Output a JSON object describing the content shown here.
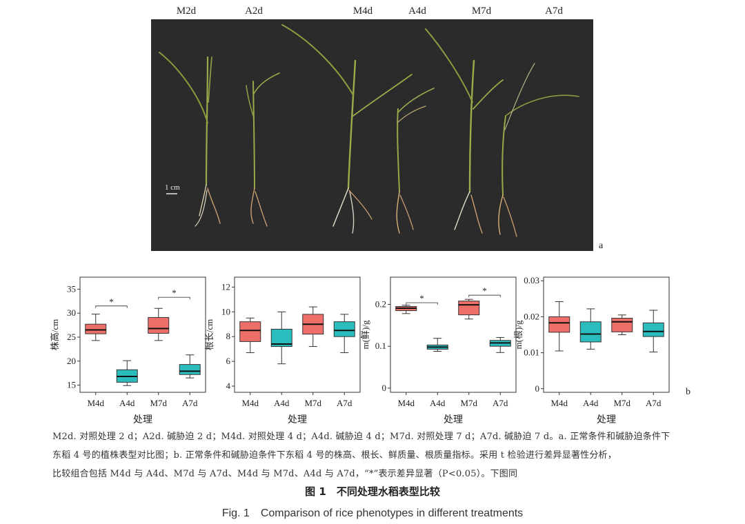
{
  "photo": {
    "labels": [
      "M2d",
      "A2d",
      "M4d",
      "A4d",
      "M7d",
      "A7d"
    ],
    "scale_bar": "1 cm",
    "panel_letter": "a"
  },
  "panel_b_letter": "b",
  "colors": {
    "control": "#ee6f6a",
    "alkali": "#2bbcbe",
    "photo_bg": "#2b2b2b"
  },
  "chart_data": [
    {
      "type": "box",
      "ylabel": "株高/cm",
      "xlabel": "处理",
      "categories": [
        "M4d",
        "A4d",
        "M7d",
        "A7d"
      ],
      "yticks": [
        15,
        20,
        25,
        30,
        35
      ],
      "ylim": [
        13.5,
        37.5
      ],
      "boxes": [
        {
          "min": 24.3,
          "q1": 25.7,
          "median": 26.5,
          "q3": 27.7,
          "max": 29.8
        },
        {
          "min": 14.9,
          "q1": 15.6,
          "median": 16.8,
          "q3": 18.2,
          "max": 20.1
        },
        {
          "min": 24.3,
          "q1": 25.8,
          "median": 26.8,
          "q3": 29.1,
          "max": 31.0
        },
        {
          "min": 16.5,
          "q1": 17.2,
          "median": 17.9,
          "q3": 19.3,
          "max": 21.3
        }
      ],
      "significance": [
        {
          "from": 0,
          "to": 1,
          "y": 31.5,
          "label": "*"
        },
        {
          "from": 2,
          "to": 3,
          "y": 33.3,
          "label": "*"
        }
      ]
    },
    {
      "type": "box",
      "ylabel": "根长/cm",
      "xlabel": "处理",
      "categories": [
        "M4d",
        "A4d",
        "M7d",
        "A7d"
      ],
      "yticks": [
        4,
        6,
        8,
        10,
        12
      ],
      "ylim": [
        3.5,
        12.8
      ],
      "boxes": [
        {
          "min": 6.7,
          "q1": 7.6,
          "median": 8.5,
          "q3": 9.2,
          "max": 9.5
        },
        {
          "min": 5.8,
          "q1": 7.2,
          "median": 7.4,
          "q3": 8.6,
          "max": 10.0
        },
        {
          "min": 7.2,
          "q1": 8.2,
          "median": 9.0,
          "q3": 9.8,
          "max": 10.4
        },
        {
          "min": 6.7,
          "q1": 8.0,
          "median": 8.5,
          "q3": 9.2,
          "max": 9.8
        }
      ],
      "significance": []
    },
    {
      "type": "box",
      "ylabel": "m(鲜)/g",
      "xlabel": "处理",
      "categories": [
        "M4d",
        "A4d",
        "M7d",
        "A7d"
      ],
      "yticks": [
        0,
        0.1,
        0.2
      ],
      "ylim": [
        -0.01,
        0.265
      ],
      "boxes": [
        {
          "min": 0.178,
          "q1": 0.185,
          "median": 0.191,
          "q3": 0.195,
          "max": 0.198
        },
        {
          "min": 0.088,
          "q1": 0.093,
          "median": 0.098,
          "q3": 0.103,
          "max": 0.119
        },
        {
          "min": 0.165,
          "q1": 0.175,
          "median": 0.199,
          "q3": 0.208,
          "max": 0.212
        },
        {
          "min": 0.085,
          "q1": 0.1,
          "median": 0.108,
          "q3": 0.114,
          "max": 0.121
        }
      ],
      "significance": [
        {
          "from": 0,
          "to": 1,
          "y": 0.204,
          "label": "*"
        },
        {
          "from": 2,
          "to": 3,
          "y": 0.222,
          "label": "*"
        }
      ]
    },
    {
      "type": "box",
      "ylabel": "m(根)/g",
      "xlabel": "处理",
      "categories": [
        "M4d",
        "A4d",
        "M7d",
        "A7d"
      ],
      "yticks": [
        0,
        0.01,
        0.02,
        0.03
      ],
      "ylim": [
        -0.001,
        0.031
      ],
      "boxes": [
        {
          "min": 0.0105,
          "q1": 0.0157,
          "median": 0.0183,
          "q3": 0.02,
          "max": 0.0242
        },
        {
          "min": 0.011,
          "q1": 0.013,
          "median": 0.0152,
          "q3": 0.0186,
          "max": 0.0222
        },
        {
          "min": 0.015,
          "q1": 0.0158,
          "median": 0.0186,
          "q3": 0.0196,
          "max": 0.0205
        },
        {
          "min": 0.0102,
          "q1": 0.0145,
          "median": 0.0159,
          "q3": 0.0183,
          "max": 0.0218
        }
      ],
      "significance": []
    }
  ],
  "caption": {
    "line1": "M2d. 对照处理 2 d；A2d. 碱胁迫 2 d；M4d. 对照处理 4 d；A4d. 碱胁迫 4 d；M7d. 对照处理 7 d；A7d. 碱胁迫 7 d。a. 正常条件和碱胁迫条件下",
    "line2": "东稻 4 号的植株表型对比图；b. 正常条件和碱胁迫条件下东稻 4 号的株高、根长、鲜质量、根质量指标。采用 t 检验进行差异显著性分析，",
    "line3": "比较组合包括 M4d 与 A4d、M7d 与 A7d、M4d 与 M7d、A4d 与 A7d，“*”表示差异显著（P<0.05）。下图同"
  },
  "figure_title_cn": "图 1　不同处理水稻表型比较",
  "figure_title_en": "Fig. 1　Comparison of rice phenotypes in different treatments"
}
